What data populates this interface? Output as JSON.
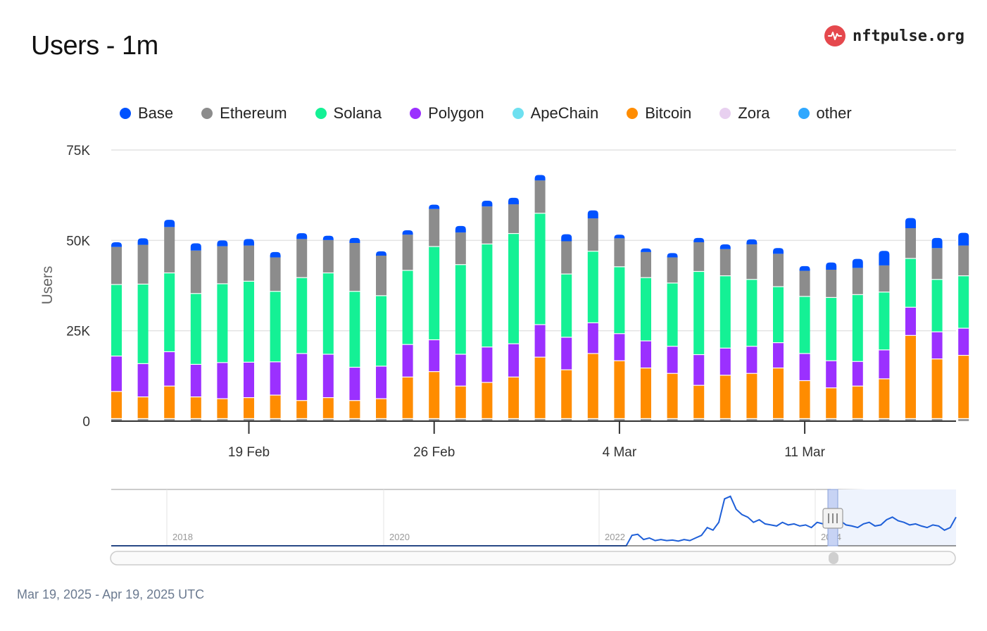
{
  "title": "Users - 1m",
  "brand": {
    "name": "nftpulse.org",
    "icon": "pulse-icon",
    "color": "#e5484d"
  },
  "footer": {
    "date_range": "Mar 19, 2025 - Apr 19, 2025 UTC"
  },
  "chart_data": {
    "type": "bar",
    "stacked": true,
    "ylabel": "Users",
    "ylim": [
      0,
      75000
    ],
    "yticks": [
      0,
      25000,
      50000,
      75000
    ],
    "ytick_labels": [
      "0",
      "25K",
      "50K",
      "75K"
    ],
    "xtick_labels": [
      "19 Feb",
      "26 Feb",
      "4 Mar",
      "11 Mar"
    ],
    "xtick_positions": [
      5,
      12,
      19,
      26
    ],
    "grid": true,
    "legend_position": "top-left",
    "series": [
      {
        "name": "Bitcoin",
        "color": "#ff8c00",
        "values": [
          7500,
          6000,
          9000,
          6000,
          5500,
          5800,
          6500,
          5000,
          5800,
          5000,
          5500,
          11500,
          13000,
          9000,
          10000,
          11500,
          17000,
          13500,
          18000,
          16000,
          14000,
          12500,
          9200,
          12000,
          12500,
          14000,
          10500,
          8500,
          9000,
          11000,
          23000,
          16500,
          17500
        ]
      },
      {
        "name": "Polygon",
        "color": "#9b30ff",
        "values": [
          9800,
          9200,
          9500,
          9000,
          10000,
          9800,
          9200,
          13000,
          12000,
          9200,
          9000,
          9000,
          8800,
          8800,
          9800,
          9200,
          9000,
          9000,
          8500,
          7500,
          7500,
          7500,
          8500,
          7500,
          7500,
          7000,
          7500,
          7500,
          6800,
          8000,
          7800,
          7500,
          7500
        ]
      },
      {
        "name": "Solana",
        "color": "#14f195",
        "values": [
          19800,
          22000,
          21800,
          19600,
          21800,
          22400,
          19500,
          21000,
          22500,
          21000,
          19500,
          20500,
          25800,
          24800,
          28500,
          30500,
          30800,
          17500,
          19800,
          18500,
          17500,
          17500,
          23000,
          20000,
          18500,
          15500,
          15800,
          17500,
          18500,
          16000,
          13500,
          14500,
          14500
        ]
      },
      {
        "name": "Ethereum",
        "color": "#8c8c8c",
        "values": [
          10500,
          11000,
          12800,
          12000,
          10500,
          10000,
          9500,
          10800,
          9200,
          13500,
          11200,
          10000,
          10500,
          9000,
          10500,
          8200,
          9200,
          9200,
          9200,
          8000,
          7200,
          7200,
          8200,
          7500,
          9800,
          9200,
          7200,
          7800,
          7500,
          7500,
          8500,
          8800,
          8500
        ]
      },
      {
        "name": "Base",
        "color": "#0052ff",
        "values": [
          1300,
          1800,
          2000,
          2000,
          1600,
          1800,
          1500,
          1600,
          1200,
          1400,
          1200,
          1200,
          1200,
          1800,
          1600,
          1800,
          1500,
          1900,
          2200,
          1000,
          1000,
          1200,
          1200,
          1300,
          1400,
          1600,
          1300,
          2000,
          2500,
          4000,
          2800,
          2800,
          3500
        ]
      },
      {
        "name": "ApeChain",
        "color": "#6ee0f0",
        "values": []
      },
      {
        "name": "Zora",
        "color": "#e8d0f0",
        "values": []
      },
      {
        "name": "other",
        "color": "#2fa8ff",
        "values": []
      }
    ],
    "legend_order": [
      "Base",
      "Ethereum",
      "Solana",
      "Polygon",
      "ApeChain",
      "Bitcoin",
      "Zora",
      "other"
    ],
    "navigator": {
      "tick_labels": [
        "2018",
        "2020",
        "2022",
        "2024"
      ],
      "line_color": "#1e5fd8",
      "series": [
        0,
        0,
        0,
        0,
        0,
        0,
        0,
        0,
        0,
        0,
        0,
        0,
        0,
        0,
        0,
        0,
        0,
        0,
        0,
        0,
        0,
        0,
        0,
        0,
        0,
        0,
        0,
        0,
        0,
        0,
        0,
        0,
        0,
        0,
        0,
        0,
        0,
        0,
        0,
        0,
        0,
        0,
        0,
        0,
        0,
        0,
        0,
        0,
        0,
        0,
        0,
        0,
        0,
        0,
        0,
        0,
        0,
        0,
        0,
        0,
        0,
        0,
        0,
        0,
        0,
        0,
        0,
        0,
        0,
        0,
        0,
        0,
        0,
        0,
        0,
        0,
        0,
        0,
        0,
        0,
        0,
        0,
        0,
        0,
        0,
        0,
        0,
        0,
        0,
        0,
        0.2,
        0.22,
        0.12,
        0.15,
        0.1,
        0.12,
        0.1,
        0.11,
        0.09,
        0.12,
        0.1,
        0.15,
        0.2,
        0.35,
        0.3,
        0.45,
        0.9,
        0.95,
        0.7,
        0.6,
        0.55,
        0.45,
        0.5,
        0.42,
        0.4,
        0.38,
        0.45,
        0.4,
        0.42,
        0.38,
        0.4,
        0.35,
        0.45,
        0.42,
        0.5,
        0.45,
        0.48,
        0.4,
        0.38,
        0.35,
        0.42,
        0.45,
        0.38,
        0.4,
        0.5,
        0.55,
        0.48,
        0.45,
        0.4,
        0.42,
        0.38,
        0.35,
        0.4,
        0.38,
        0.3,
        0.35,
        0.55
      ]
    }
  }
}
